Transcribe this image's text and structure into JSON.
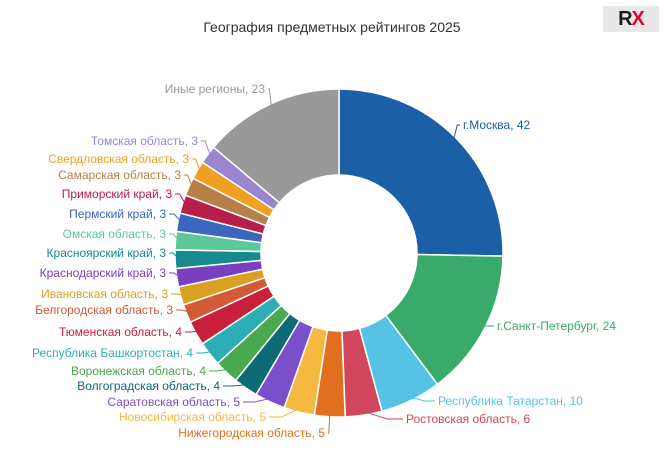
{
  "logo": {
    "r": "R",
    "x": "X",
    "r_color": "#1a1a1a",
    "x_color": "#e4032e"
  },
  "chart_data": {
    "type": "pie",
    "variant": "donut",
    "title": "География предметных рейтингов 2025",
    "slices": [
      {
        "label": "г.Москва",
        "value": 42,
        "color": "#1a5fa8"
      },
      {
        "label": "г.Санкт-Петербург",
        "value": 24,
        "color": "#3aaa6a"
      },
      {
        "label": "Республика Татарстан",
        "value": 10,
        "color": "#56c3e6"
      },
      {
        "label": "Ростовская область",
        "value": 6,
        "color": "#d0465a"
      },
      {
        "label": "Нижегородская область",
        "value": 5,
        "color": "#e07020"
      },
      {
        "label": "Новосибирская область",
        "value": 5,
        "color": "#f5b942"
      },
      {
        "label": "Саратовская область",
        "value": 5,
        "color": "#7a4fc9"
      },
      {
        "label": "Волгоградская область",
        "value": 4,
        "color": "#0e6a74"
      },
      {
        "label": "Воронежская область",
        "value": 4,
        "color": "#4aa84e"
      },
      {
        "label": "Республика Башкортостан",
        "value": 4,
        "color": "#2bafb5"
      },
      {
        "label": "Тюменская область",
        "value": 4,
        "color": "#c8203a"
      },
      {
        "label": "Белгородская область",
        "value": 3,
        "color": "#d25a36"
      },
      {
        "label": "Ивановская область",
        "value": 3,
        "color": "#d9a021"
      },
      {
        "label": "Краснодарский край",
        "value": 3,
        "color": "#7a3fc0"
      },
      {
        "label": "Красноярский край",
        "value": 3,
        "color": "#178a8f"
      },
      {
        "label": "Омская область",
        "value": 3,
        "color": "#5ec79a"
      },
      {
        "label": "Пермский край",
        "value": 3,
        "color": "#3a66c0"
      },
      {
        "label": "Приморский край",
        "value": 3,
        "color": "#b81e4a"
      },
      {
        "label": "Самарская область",
        "value": 3,
        "color": "#b88048"
      },
      {
        "label": "Свердловская область",
        "value": 3,
        "color": "#f0a020"
      },
      {
        "label": "Томская область",
        "value": 3,
        "color": "#9b85cf"
      },
      {
        "label": "Иные регионы",
        "value": 23,
        "color": "#999999"
      }
    ]
  }
}
